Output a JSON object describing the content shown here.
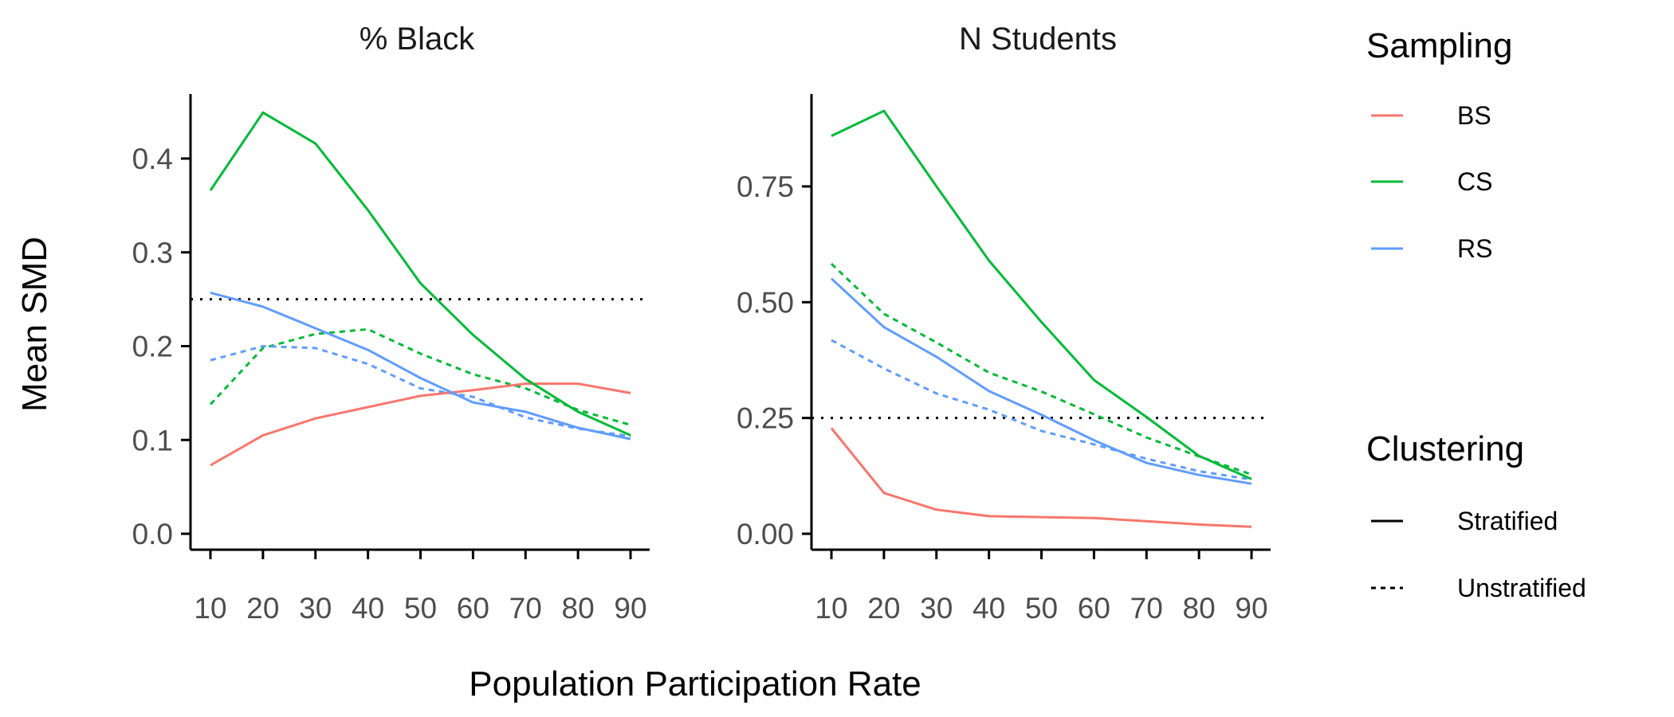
{
  "chart_data": [
    {
      "type": "line",
      "title": "% Black",
      "x": [
        10,
        20,
        30,
        40,
        50,
        60,
        70,
        80,
        90
      ],
      "xlim": [
        10,
        90
      ],
      "ylim": [
        0.0,
        0.45
      ],
      "yticks": [
        0.0,
        0.1,
        0.2,
        0.3,
        0.4
      ],
      "ytick_labels": [
        "0.0",
        "0.1",
        "0.2",
        "0.3",
        "0.4"
      ],
      "reference_line": 0.25,
      "series": [
        {
          "sampling": "BS",
          "clustering": "Stratified",
          "values": [
            0.073,
            0.105,
            0.123,
            0.135,
            0.147,
            0.153,
            0.16,
            0.16,
            0.15
          ]
        },
        {
          "sampling": "CS",
          "clustering": "Stratified",
          "values": [
            0.366,
            0.449,
            0.416,
            0.345,
            0.267,
            0.212,
            0.165,
            0.13,
            0.105
          ]
        },
        {
          "sampling": "RS",
          "clustering": "Stratified",
          "values": [
            0.257,
            0.242,
            0.219,
            0.196,
            0.166,
            0.14,
            0.13,
            0.113,
            0.101
          ]
        },
        {
          "sampling": "CS",
          "clustering": "Unstratified",
          "values": [
            0.138,
            0.198,
            0.213,
            0.218,
            0.192,
            0.17,
            0.155,
            0.132,
            0.116
          ]
        },
        {
          "sampling": "RS",
          "clustering": "Unstratified",
          "values": [
            0.185,
            0.2,
            0.198,
            0.181,
            0.155,
            0.146,
            0.124,
            0.112,
            0.104
          ]
        }
      ]
    },
    {
      "type": "line",
      "title": "N Students",
      "x": [
        10,
        20,
        30,
        40,
        50,
        60,
        70,
        80,
        90
      ],
      "xlim": [
        10,
        90
      ],
      "ylim": [
        0.0,
        0.92
      ],
      "yticks": [
        0.0,
        0.25,
        0.5,
        0.75
      ],
      "ytick_labels": [
        "0.00",
        "0.25",
        "0.50",
        "0.75"
      ],
      "reference_line": 0.25,
      "series": [
        {
          "sampling": "BS",
          "clustering": "Stratified",
          "values": [
            0.228,
            0.088,
            0.052,
            0.038,
            0.036,
            0.034,
            0.027,
            0.02,
            0.015
          ]
        },
        {
          "sampling": "CS",
          "clustering": "Stratified",
          "values": [
            0.859,
            0.913,
            0.75,
            0.59,
            0.457,
            0.332,
            0.252,
            0.168,
            0.118
          ]
        },
        {
          "sampling": "RS",
          "clustering": "Stratified",
          "values": [
            0.551,
            0.446,
            0.382,
            0.308,
            0.257,
            0.202,
            0.153,
            0.127,
            0.108
          ]
        },
        {
          "sampling": "CS",
          "clustering": "Unstratified",
          "values": [
            0.583,
            0.475,
            0.413,
            0.348,
            0.307,
            0.258,
            0.208,
            0.167,
            0.128
          ]
        },
        {
          "sampling": "RS",
          "clustering": "Unstratified",
          "values": [
            0.418,
            0.357,
            0.303,
            0.268,
            0.222,
            0.193,
            0.162,
            0.135,
            0.117
          ]
        }
      ]
    }
  ],
  "x_title": "Population Participation Rate",
  "y_title": "Mean SMD",
  "x_tick_labels": [
    "10",
    "20",
    "30",
    "40",
    "50",
    "60",
    "70",
    "80",
    "90"
  ],
  "colors": {
    "BS": "#F8766D",
    "CS": "#00BA38",
    "RS": "#619CFF"
  },
  "legend": {
    "sampling_title": "Sampling",
    "sampling_items": [
      "BS",
      "CS",
      "RS"
    ],
    "clustering_title": "Clustering",
    "clustering_items": [
      "Stratified",
      "Unstratified"
    ],
    "placement": "right"
  }
}
